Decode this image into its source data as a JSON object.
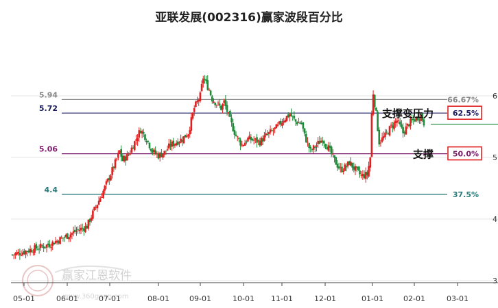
{
  "chart_data": {
    "type": "candlestick",
    "title": "亚联发展(002316)赢家波段百分比",
    "x_ticks": [
      "05-01",
      "06-01",
      "07-01",
      "08-01",
      "09-01",
      "10-01",
      "11-01",
      "12-01",
      "01-01",
      "02-01",
      "03-01"
    ],
    "y_ticks": [
      "6",
      "5",
      "4",
      "3"
    ],
    "ylim": [
      3.0,
      6.3
    ],
    "levels": [
      {
        "price": "5.94",
        "value": 5.94,
        "pct": "66.67%",
        "color": "#888888",
        "boxed": false
      },
      {
        "price": "5.72",
        "value": 5.72,
        "pct": "62.5%",
        "color": "#1a1a5e",
        "boxed": true
      },
      {
        "price": "5.06",
        "value": 5.06,
        "pct": "50.0%",
        "color": "#7a1a6a",
        "boxed": true
      },
      {
        "price": "4.4",
        "value": 4.4,
        "pct": "37.5%",
        "color": "#2a7a7a",
        "boxed": false
      }
    ],
    "annotations": [
      {
        "text": "支撑变压力",
        "level": 5.72
      },
      {
        "text": "支撑",
        "level": 5.06
      }
    ],
    "last_price": 5.54,
    "colors": {
      "up": "#e02020",
      "down": "#1f8a3a",
      "box": "#e02020"
    },
    "price_path": [
      [
        0,
        3.42
      ],
      [
        6,
        3.5
      ],
      [
        12,
        3.58
      ],
      [
        18,
        3.72
      ],
      [
        22,
        3.82
      ],
      [
        25,
        3.88
      ],
      [
        27,
        4.1
      ],
      [
        30,
        4.4
      ],
      [
        32,
        4.62
      ],
      [
        34,
        4.85
      ],
      [
        36,
        5.1
      ],
      [
        37,
        4.95
      ],
      [
        39,
        5.05
      ],
      [
        41,
        5.25
      ],
      [
        43,
        5.45
      ],
      [
        45,
        5.3
      ],
      [
        47,
        5.1
      ],
      [
        49,
        5.03
      ],
      [
        51,
        5.08
      ],
      [
        53,
        5.2
      ],
      [
        55,
        5.25
      ],
      [
        57,
        5.3
      ],
      [
        59,
        5.4
      ],
      [
        61,
        5.8
      ],
      [
        63,
        6.0
      ],
      [
        64,
        6.3
      ],
      [
        65,
        6.2
      ],
      [
        66,
        6.1
      ],
      [
        67,
        5.95
      ],
      [
        68,
        5.9
      ],
      [
        70,
        5.8
      ],
      [
        71,
        5.9
      ],
      [
        73,
        5.6
      ],
      [
        75,
        5.35
      ],
      [
        77,
        5.2
      ],
      [
        79,
        5.3
      ],
      [
        81,
        5.28
      ],
      [
        83,
        5.25
      ],
      [
        85,
        5.35
      ],
      [
        87,
        5.42
      ],
      [
        89,
        5.5
      ],
      [
        91,
        5.62
      ],
      [
        93,
        5.7
      ],
      [
        95,
        5.58
      ],
      [
        97,
        5.55
      ],
      [
        98,
        5.35
      ],
      [
        100,
        5.1
      ],
      [
        102,
        5.2
      ],
      [
        104,
        5.3
      ],
      [
        106,
        5.15
      ],
      [
        108,
        4.95
      ],
      [
        110,
        4.8
      ],
      [
        112,
        4.85
      ],
      [
        113,
        4.92
      ],
      [
        115,
        4.8
      ],
      [
        117,
        4.7
      ],
      [
        119,
        4.72
      ],
      [
        120,
        5.0
      ],
      [
        120.5,
        5.7
      ],
      [
        121,
        6.05
      ],
      [
        122,
        5.7
      ],
      [
        123,
        5.25
      ],
      [
        125,
        5.35
      ],
      [
        127,
        5.5
      ],
      [
        129,
        5.6
      ],
      [
        131,
        5.4
      ],
      [
        133,
        5.55
      ],
      [
        135,
        5.62
      ],
      [
        137,
        5.68
      ],
      [
        138,
        5.56
      ]
    ]
  }
}
